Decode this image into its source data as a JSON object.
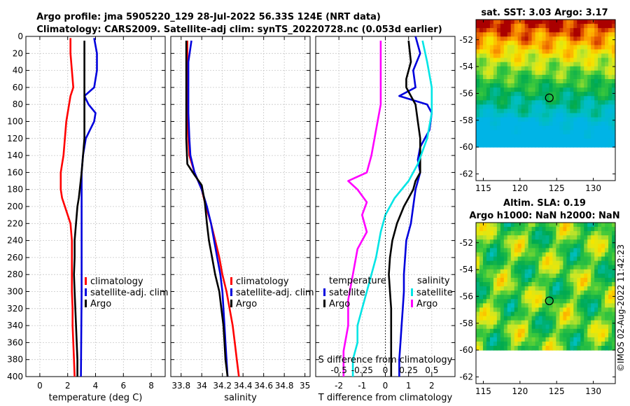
{
  "header": {
    "line1": "Argo profile: jma 5905220_129 28-Jul-2022 56.33S 124E (NRT data)",
    "line2": "Climatology: CARS2009. Satellite-adj clim: synTS_20220728.nc (0.053d earlier)"
  },
  "credit": "©IMOS 02-Aug-2022 11:42:23",
  "colors": {
    "climatology": "#ff0000",
    "satellite": "#0000dd",
    "argo": "#000000",
    "sat_s": "#00e5e5",
    "argo_s_diff": "#ff00ff"
  },
  "chart_data": [
    {
      "id": "temperature",
      "type": "line",
      "xlabel": "temperature (deg C)",
      "xlim": [
        -1,
        9
      ],
      "xticks": [
        0,
        2,
        4,
        6,
        8
      ],
      "ylim": [
        0,
        400
      ],
      "yticks": [
        0,
        20,
        40,
        60,
        80,
        100,
        120,
        140,
        160,
        180,
        200,
        220,
        240,
        260,
        280,
        300,
        320,
        340,
        360,
        380,
        400
      ],
      "legend": [
        "climatology",
        "satellite-adj. clim",
        "Argo"
      ],
      "series": [
        {
          "name": "climatology",
          "color": "#ff0000",
          "points": [
            [
              2.2,
              2
            ],
            [
              2.2,
              20
            ],
            [
              2.3,
              40
            ],
            [
              2.4,
              60
            ],
            [
              2.2,
              70
            ],
            [
              2.1,
              80
            ],
            [
              1.9,
              100
            ],
            [
              1.8,
              120
            ],
            [
              1.7,
              140
            ],
            [
              1.6,
              150
            ],
            [
              1.5,
              160
            ],
            [
              1.5,
              180
            ],
            [
              1.6,
              190
            ],
            [
              1.8,
              200
            ],
            [
              2.0,
              210
            ],
            [
              2.2,
              220
            ],
            [
              2.3,
              240
            ],
            [
              2.3,
              260
            ],
            [
              2.3,
              280
            ],
            [
              2.3,
              300
            ],
            [
              2.35,
              320
            ],
            [
              2.35,
              340
            ],
            [
              2.4,
              360
            ],
            [
              2.45,
              380
            ],
            [
              2.5,
              400
            ]
          ]
        },
        {
          "name": "satellite-adj. clim",
          "color": "#0000dd",
          "points": [
            [
              3.9,
              2
            ],
            [
              4.1,
              20
            ],
            [
              4.1,
              40
            ],
            [
              3.9,
              60
            ],
            [
              3.2,
              70
            ],
            [
              3.5,
              80
            ],
            [
              4.0,
              90
            ],
            [
              3.9,
              100
            ],
            [
              3.6,
              110
            ],
            [
              3.3,
              120
            ],
            [
              3.1,
              140
            ],
            [
              3.0,
              160
            ],
            [
              3.0,
              200
            ],
            [
              3.0,
              300
            ],
            [
              2.95,
              400
            ]
          ]
        },
        {
          "name": "Argo",
          "color": "#000000",
          "points": [
            [
              3.2,
              5
            ],
            [
              3.2,
              20
            ],
            [
              3.2,
              40
            ],
            [
              3.2,
              60
            ],
            [
              3.2,
              80
            ],
            [
              3.2,
              100
            ],
            [
              3.2,
              120
            ],
            [
              3.1,
              140
            ],
            [
              3.0,
              160
            ],
            [
              2.9,
              175
            ],
            [
              2.8,
              190
            ],
            [
              2.7,
              200
            ],
            [
              2.6,
              220
            ],
            [
              2.5,
              240
            ],
            [
              2.5,
              260
            ],
            [
              2.45,
              280
            ],
            [
              2.5,
              300
            ],
            [
              2.55,
              320
            ],
            [
              2.6,
              340
            ],
            [
              2.65,
              360
            ],
            [
              2.7,
              380
            ],
            [
              2.7,
              400
            ]
          ]
        }
      ]
    },
    {
      "id": "salinity",
      "type": "line",
      "xlabel": "salinity",
      "xlim": [
        33.7,
        35.05
      ],
      "xticks": [
        33.8,
        34,
        34.2,
        34.4,
        34.6,
        34.8,
        35
      ],
      "xticklabels": [
        "33.8",
        "34",
        "34.2",
        "34.4",
        "34.6",
        "34.8",
        "35"
      ],
      "ylim": [
        0,
        400
      ],
      "legend": [
        "climatology",
        "satellite-adj. clim",
        "Argo"
      ],
      "series": [
        {
          "name": "climatology",
          "color": "#ff0000",
          "points": [
            [
              33.86,
              5
            ],
            [
              33.86,
              30
            ],
            [
              33.86,
              60
            ],
            [
              33.86,
              90
            ],
            [
              33.87,
              120
            ],
            [
              33.88,
              140
            ],
            [
              33.93,
              160
            ],
            [
              34.0,
              180
            ],
            [
              34.04,
              200
            ],
            [
              34.09,
              220
            ],
            [
              34.13,
              240
            ],
            [
              34.17,
              260
            ],
            [
              34.2,
              280
            ],
            [
              34.24,
              300
            ],
            [
              34.27,
              320
            ],
            [
              34.3,
              340
            ],
            [
              34.32,
              360
            ],
            [
              34.34,
              380
            ],
            [
              34.36,
              400
            ]
          ]
        },
        {
          "name": "satellite-adj. clim",
          "color": "#0000dd",
          "points": [
            [
              33.9,
              5
            ],
            [
              33.87,
              30
            ],
            [
              33.87,
              60
            ],
            [
              33.87,
              90
            ],
            [
              33.88,
              120
            ],
            [
              33.89,
              140
            ],
            [
              33.93,
              160
            ],
            [
              34.0,
              180
            ],
            [
              34.05,
              200
            ],
            [
              34.09,
              220
            ],
            [
              34.12,
              240
            ],
            [
              34.15,
              260
            ],
            [
              34.18,
              280
            ],
            [
              34.2,
              300
            ],
            [
              34.21,
              320
            ],
            [
              34.22,
              340
            ],
            [
              34.23,
              360
            ],
            [
              34.24,
              380
            ],
            [
              34.25,
              400
            ]
          ]
        },
        {
          "name": "Argo",
          "color": "#000000",
          "points": [
            [
              33.85,
              5
            ],
            [
              33.85,
              30
            ],
            [
              33.85,
              60
            ],
            [
              33.85,
              90
            ],
            [
              33.85,
              120
            ],
            [
              33.86,
              150
            ],
            [
              33.93,
              163
            ],
            [
              34.0,
              175
            ],
            [
              34.03,
              195
            ],
            [
              34.05,
              220
            ],
            [
              34.07,
              240
            ],
            [
              34.1,
              260
            ],
            [
              34.13,
              280
            ],
            [
              34.17,
              300
            ],
            [
              34.19,
              320
            ],
            [
              34.21,
              340
            ],
            [
              34.22,
              360
            ],
            [
              34.23,
              380
            ],
            [
              34.25,
              400
            ]
          ]
        }
      ]
    },
    {
      "id": "difference",
      "type": "line",
      "xlabel": "T difference from climatology",
      "s_axis_label": "S difference from climatology",
      "xlim": [
        -3,
        3
      ],
      "xticks": [
        -2,
        -1,
        0,
        1,
        2
      ],
      "s_xticks": [
        -0.5,
        -0.25,
        0,
        0.25,
        0.5
      ],
      "s_xticklabels": [
        "-0.5",
        "-0.25",
        "0",
        "0.25",
        "0.5"
      ],
      "ylim": [
        0,
        400
      ],
      "legend_left": {
        "heading": "temperature",
        "items": [
          "satellite",
          "Argo"
        ]
      },
      "legend_right": {
        "heading": "salinity",
        "items": [
          "satellite",
          "Argo"
        ]
      },
      "series": [
        {
          "name": "T satellite",
          "color": "#0000dd",
          "points": [
            [
              1.3,
              0
            ],
            [
              1.5,
              20
            ],
            [
              1.2,
              40
            ],
            [
              1.3,
              60
            ],
            [
              0.6,
              70
            ],
            [
              1.8,
              80
            ],
            [
              2.0,
              90
            ],
            [
              1.9,
              110
            ],
            [
              1.5,
              130
            ],
            [
              1.4,
              145
            ],
            [
              1.5,
              160
            ],
            [
              1.3,
              180
            ],
            [
              1.2,
              200
            ],
            [
              1.1,
              220
            ],
            [
              0.9,
              240
            ],
            [
              0.85,
              260
            ],
            [
              0.8,
              280
            ],
            [
              0.8,
              300
            ],
            [
              0.75,
              320
            ],
            [
              0.7,
              340
            ],
            [
              0.65,
              360
            ],
            [
              0.6,
              380
            ],
            [
              0.6,
              400
            ]
          ]
        },
        {
          "name": "T Argo",
          "color": "#000000",
          "points": [
            [
              1.0,
              5
            ],
            [
              1.1,
              30
            ],
            [
              0.9,
              50
            ],
            [
              0.9,
              60
            ],
            [
              1.1,
              70
            ],
            [
              1.3,
              80
            ],
            [
              1.4,
              100
            ],
            [
              1.5,
              120
            ],
            [
              1.5,
              140
            ],
            [
              1.5,
              160
            ],
            [
              1.3,
              170
            ],
            [
              1.2,
              180
            ],
            [
              1.0,
              190
            ],
            [
              0.8,
              200
            ],
            [
              0.5,
              220
            ],
            [
              0.3,
              240
            ],
            [
              0.2,
              260
            ],
            [
              0.15,
              280
            ],
            [
              0.2,
              300
            ],
            [
              0.25,
              320
            ],
            [
              0.25,
              340
            ],
            [
              0.25,
              360
            ],
            [
              0.25,
              380
            ],
            [
              0.25,
              400
            ]
          ]
        },
        {
          "name": "S satellite",
          "color": "#00e5e5",
          "points": [
            [
              0.4,
              5
            ],
            [
              0.45,
              30
            ],
            [
              0.5,
              60
            ],
            [
              0.5,
              90
            ],
            [
              0.45,
              120
            ],
            [
              0.35,
              150
            ],
            [
              0.25,
              170
            ],
            [
              0.1,
              190
            ],
            [
              0.0,
              210
            ],
            [
              -0.05,
              230
            ],
            [
              -0.1,
              260
            ],
            [
              -0.15,
              280
            ],
            [
              -0.2,
              300
            ],
            [
              -0.25,
              320
            ],
            [
              -0.3,
              340
            ],
            [
              -0.3,
              360
            ],
            [
              -0.35,
              380
            ],
            [
              -0.35,
              400
            ]
          ]
        },
        {
          "name": "S Argo",
          "color": "#ff00ff",
          "points": [
            [
              -0.05,
              5
            ],
            [
              -0.05,
              40
            ],
            [
              -0.05,
              80
            ],
            [
              -0.1,
              110
            ],
            [
              -0.15,
              140
            ],
            [
              -0.2,
              160
            ],
            [
              -0.4,
              170
            ],
            [
              -0.3,
              180
            ],
            [
              -0.2,
              195
            ],
            [
              -0.25,
              210
            ],
            [
              -0.2,
              230
            ],
            [
              -0.3,
              250
            ],
            [
              -0.35,
              280
            ],
            [
              -0.4,
              310
            ],
            [
              -0.4,
              340
            ],
            [
              -0.45,
              370
            ],
            [
              -0.45,
              400
            ]
          ]
        }
      ]
    },
    {
      "id": "sst_map",
      "type": "heatmap",
      "title": "sat. SST: 3.03 Argo: 3.17",
      "xlim": [
        114,
        133
      ],
      "xticks": [
        115,
        120,
        125,
        130
      ],
      "ylim": [
        -62.5,
        -50.5
      ],
      "yticks": [
        -52,
        -54,
        -56,
        -58,
        -60,
        -62
      ],
      "marker": {
        "lon": 124,
        "lat": -56.33
      }
    },
    {
      "id": "sla_map",
      "type": "heatmap",
      "title": "Altim. SLA: 0.19",
      "subtitle": "Argo h1000: NaN h2000: NaN",
      "xlim": [
        114,
        133
      ],
      "xticks": [
        115,
        120,
        125,
        130
      ],
      "ylim": [
        -62.5,
        -50.5
      ],
      "yticks": [
        -52,
        -54,
        -56,
        -58,
        -60,
        -62
      ],
      "marker": {
        "lon": 124,
        "lat": -56.33
      }
    }
  ]
}
